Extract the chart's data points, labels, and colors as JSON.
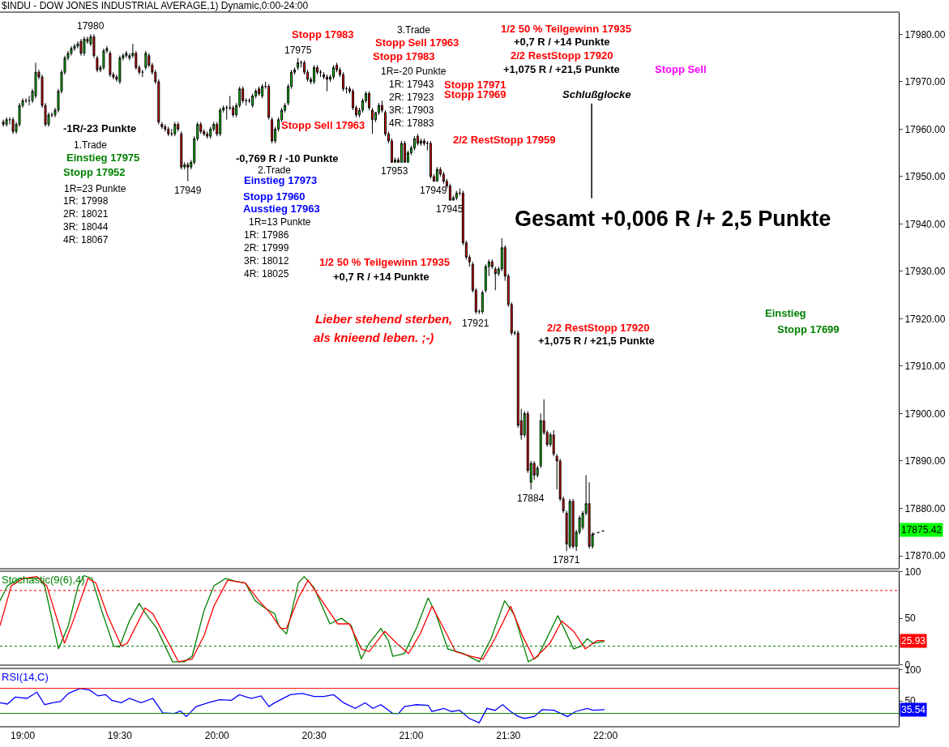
{
  "chart_data": [
    {
      "type": "candlestick",
      "title": "$INDU - DOW JONES INDUSTRIAL AVERAGE,1) Dynamic,0:00-24:00",
      "x": [
        18.9,
        18.9167,
        18.9333,
        18.95,
        18.9667,
        18.9833,
        19.0,
        19.0167,
        19.0333,
        19.05,
        19.0667,
        19.0833,
        19.1,
        19.1167,
        19.1333,
        19.15,
        19.1667,
        19.1833,
        19.2,
        19.2167,
        19.2333,
        19.25,
        19.2667,
        19.2833,
        19.3,
        19.3167,
        19.3333,
        19.35,
        19.3667,
        19.3833,
        19.4,
        19.4167,
        19.4333,
        19.45,
        19.4667,
        19.4833,
        19.5,
        19.5167,
        19.5333,
        19.55,
        19.5667,
        19.5833,
        19.6,
        19.6167,
        19.6333,
        19.65,
        19.6667,
        19.6833,
        19.7,
        19.7167,
        19.7333,
        19.75,
        19.7667,
        19.7833,
        19.8,
        19.8167,
        19.8333,
        19.85,
        19.8667,
        19.8833,
        19.9,
        19.9167,
        19.9333,
        19.95,
        19.9667,
        19.9833,
        20.0,
        20.0167,
        20.0333,
        20.05,
        20.0667,
        20.0833,
        20.1,
        20.1167,
        20.1333,
        20.15,
        20.1667,
        20.1833,
        20.2,
        20.2167,
        20.2333,
        20.25,
        20.2667,
        20.2833,
        20.3,
        20.3167,
        20.3333,
        20.35,
        20.3667,
        20.3833,
        20.4,
        20.4167,
        20.4333,
        20.45,
        20.4667,
        20.4833,
        20.5,
        20.5167,
        20.5333,
        20.55,
        20.5667,
        20.5833,
        20.6,
        20.6167,
        20.6333,
        20.65,
        20.6667,
        20.6833,
        20.7,
        20.7167,
        20.7333,
        20.75,
        20.7667,
        20.7833,
        20.8,
        20.8167,
        20.8333,
        20.85,
        20.8667,
        20.8833,
        20.9,
        20.9167,
        20.9333,
        20.95,
        20.9667,
        20.9833,
        21.0,
        21.0167,
        21.0333,
        21.05,
        21.0667,
        21.0833,
        21.1,
        21.1167,
        21.1333,
        21.15,
        21.1667,
        21.1833,
        21.2,
        21.2167,
        21.2333,
        21.25,
        21.2667,
        21.2833,
        21.3,
        21.3167,
        21.3333,
        21.35,
        21.3667,
        21.3833,
        21.4,
        21.4167,
        21.4333,
        21.45,
        21.4667,
        21.4833,
        21.5,
        21.5167,
        21.5333,
        21.55,
        21.5667,
        21.5833,
        21.6,
        21.6167,
        21.6333,
        21.65,
        21.6667,
        21.6833,
        21.7,
        21.7167,
        21.7333,
        21.75,
        21.7667,
        21.7833,
        21.8,
        21.8167,
        21.8333,
        21.85,
        21.8667,
        21.8833,
        21.9,
        21.9167,
        21.9333
      ],
      "ohlc": [
        [
          17961.5,
          17962,
          17960.5,
          17961
        ],
        [
          17961,
          17962.5,
          17960.5,
          17962
        ],
        [
          17962,
          17962.5,
          17961,
          17962
        ],
        [
          17962,
          17962.5,
          17959,
          17959.5
        ],
        [
          17959.5,
          17961.5,
          17959,
          17961
        ],
        [
          17961,
          17965.5,
          17960.5,
          17965
        ],
        [
          17965,
          17966.5,
          17964.5,
          17966
        ],
        [
          17966,
          17966.5,
          17965.5,
          17966
        ],
        [
          17966,
          17967,
          17965,
          17966
        ],
        [
          17966,
          17968.5,
          17965.5,
          17968
        ],
        [
          17967,
          17974,
          17966.5,
          17972
        ],
        [
          17972,
          17972.5,
          17970.5,
          17971
        ],
        [
          17971,
          17971.5,
          17964.5,
          17965
        ],
        [
          17965,
          17965.5,
          17960.5,
          17961
        ],
        [
          17961,
          17963.5,
          17960.5,
          17963
        ],
        [
          17963,
          17963.5,
          17962.5,
          17963
        ],
        [
          17963,
          17964.5,
          17962.5,
          17964
        ],
        [
          17964,
          17968.5,
          17963.5,
          17968
        ],
        [
          17968,
          17972.5,
          17967.5,
          17972
        ],
        [
          17972,
          17975.5,
          17971.5,
          17975
        ],
        [
          17975,
          17976.5,
          17974.5,
          17976
        ],
        [
          17976,
          17977.5,
          17975.5,
          17977
        ],
        [
          17977,
          17978,
          17976.5,
          17977.5
        ],
        [
          17977.5,
          17978.5,
          17977,
          17978
        ],
        [
          17978.5,
          17979,
          17975.5,
          17976
        ],
        [
          17976,
          17979.5,
          17975.5,
          17979
        ],
        [
          17979,
          17979.5,
          17978,
          17978.5
        ],
        [
          17978,
          17980,
          17977.5,
          17979.5
        ],
        [
          17979.5,
          17980,
          17975,
          17975.5
        ],
        [
          17975,
          17975.5,
          17972,
          17972.5
        ],
        [
          17972.5,
          17973.5,
          17972,
          17973
        ],
        [
          17973,
          17977,
          17972.5,
          17976.5
        ],
        [
          17976.5,
          17977.5,
          17976,
          17977
        ],
        [
          17976,
          17976.5,
          17971,
          17971.5
        ],
        [
          17971.5,
          17972,
          17970.5,
          17971
        ],
        [
          17971,
          17971.5,
          17970,
          17970.5
        ],
        [
          17970,
          17975.5,
          17969.5,
          17975
        ],
        [
          17975,
          17976,
          17974.5,
          17975.5
        ],
        [
          17975.5,
          17976.5,
          17975,
          17976
        ],
        [
          17975,
          17976,
          17974.5,
          17975.5
        ],
        [
          17975.5,
          17978,
          17975,
          17976
        ],
        [
          17976,
          17976.5,
          17972.5,
          17973
        ],
        [
          17973,
          17973.5,
          17971.5,
          17972
        ],
        [
          17972,
          17972.5,
          17971,
          17972
        ],
        [
          17973,
          17976.5,
          17972.5,
          17976
        ],
        [
          17975.5,
          17976,
          17973,
          17973.5
        ],
        [
          17973.5,
          17974,
          17971.5,
          17972
        ],
        [
          17972,
          17972.5,
          17969.5,
          17970
        ],
        [
          17970,
          17970.5,
          17961,
          17961.5
        ],
        [
          17961,
          17961.5,
          17960,
          17960.5
        ],
        [
          17960.5,
          17961,
          17959.5,
          17960
        ],
        [
          17960,
          17960.5,
          17958.5,
          17959
        ],
        [
          17959,
          17960,
          17958.5,
          17959
        ],
        [
          17959,
          17961.5,
          17958.5,
          17961
        ],
        [
          17961,
          17961.5,
          17959.5,
          17960
        ],
        [
          17959,
          17959.5,
          17951.5,
          17952
        ],
        [
          17952,
          17953,
          17951.5,
          17952.5
        ],
        [
          17952.5,
          17953,
          17949,
          17952
        ],
        [
          17952,
          17953.5,
          17951.5,
          17953
        ],
        [
          17953,
          17958.5,
          17952.5,
          17958
        ],
        [
          17958,
          17961.5,
          17957.5,
          17961
        ],
        [
          17961,
          17961.5,
          17959,
          17959.5
        ],
        [
          17959.5,
          17960,
          17958.5,
          17959
        ],
        [
          17959,
          17959.5,
          17958,
          17958.5
        ],
        [
          17958.5,
          17960.5,
          17958,
          17960
        ],
        [
          17960,
          17961.5,
          17959.5,
          17961
        ],
        [
          17961,
          17961.5,
          17958.5,
          17959
        ],
        [
          17959,
          17964.5,
          17958.5,
          17964
        ],
        [
          17964,
          17965,
          17963.5,
          17964.5
        ],
        [
          17964.5,
          17965,
          17962,
          17964.5
        ],
        [
          17964.5,
          17967,
          17964,
          17964.5
        ],
        [
          17964.5,
          17965,
          17962.5,
          17963
        ],
        [
          17963,
          17965.5,
          17962.5,
          17965
        ],
        [
          17965,
          17969,
          17964.5,
          17968.5
        ],
        [
          17968.5,
          17969,
          17965.5,
          17966
        ],
        [
          17966,
          17966.5,
          17965,
          17966
        ],
        [
          17966,
          17966.5,
          17965.5,
          17966
        ],
        [
          17965,
          17967.5,
          17964.5,
          17967
        ],
        [
          17967,
          17968.5,
          17966.5,
          17968
        ],
        [
          17968.5,
          17969,
          17967,
          17967.5
        ],
        [
          17967,
          17969.5,
          17966.5,
          17969
        ],
        [
          17969,
          17970,
          17968.5,
          17969
        ],
        [
          17969,
          17969.5,
          17962,
          17962.5
        ],
        [
          17962,
          17962.5,
          17957,
          17957.5
        ],
        [
          17957.5,
          17960.5,
          17957,
          17960
        ],
        [
          17960,
          17962.5,
          17959.5,
          17962
        ],
        [
          17962,
          17964.5,
          17961.5,
          17964
        ],
        [
          17964,
          17965.5,
          17963.5,
          17965
        ],
        [
          17965.5,
          17969.5,
          17965,
          17969
        ],
        [
          17969,
          17972.5,
          17968.5,
          17972
        ],
        [
          17972,
          17973,
          17971.5,
          17972.5
        ],
        [
          17973,
          17975,
          17972.5,
          17974
        ],
        [
          17974,
          17974.5,
          17973,
          17974
        ],
        [
          17974,
          17974.5,
          17971.5,
          17972
        ],
        [
          17972,
          17972.5,
          17970,
          17970.5
        ],
        [
          17970.5,
          17971,
          17969.5,
          17970
        ],
        [
          17970,
          17973.5,
          17969.5,
          17973
        ],
        [
          17973,
          17973.5,
          17971.5,
          17972
        ],
        [
          17972,
          17972.5,
          17971,
          17972
        ],
        [
          17971.5,
          17972,
          17970.5,
          17971
        ],
        [
          17971,
          17971.5,
          17968,
          17970.5
        ],
        [
          17970.5,
          17971.5,
          17970,
          17971
        ],
        [
          17971,
          17973.5,
          17970.5,
          17973
        ],
        [
          17973.5,
          17974,
          17972,
          17972.5
        ],
        [
          17972.5,
          17973,
          17971,
          17971.5
        ],
        [
          17971.5,
          17972,
          17968,
          17968.5
        ],
        [
          17968.5,
          17969,
          17967.5,
          17968.5
        ],
        [
          17968.5,
          17969,
          17967.5,
          17968
        ],
        [
          17968,
          17968.5,
          17964,
          17964.5
        ],
        [
          17964.5,
          17965,
          17962.5,
          17963
        ],
        [
          17963,
          17964.5,
          17962.5,
          17964
        ],
        [
          17964,
          17966.5,
          17963.5,
          17966
        ],
        [
          17966,
          17968,
          17965.5,
          17967.5
        ],
        [
          17967.5,
          17968,
          17964,
          17964.5
        ],
        [
          17964,
          17964.5,
          17959,
          17962
        ],
        [
          17962,
          17963.5,
          17961.5,
          17963.5
        ],
        [
          17963.5,
          17965.5,
          17963,
          17965
        ],
        [
          17965,
          17966,
          17963.5,
          17964
        ],
        [
          17963.5,
          17964,
          17958.5,
          17959
        ],
        [
          17959,
          17959.5,
          17957,
          17957.5
        ],
        [
          17957.5,
          17958,
          17953,
          17953
        ],
        [
          17953,
          17954,
          17953,
          17953.5
        ],
        [
          17953.5,
          17954,
          17953,
          17953
        ],
        [
          17953,
          17957.5,
          17953,
          17957
        ],
        [
          17957,
          17957.5,
          17953,
          17953
        ],
        [
          17953,
          17955.5,
          17953,
          17955
        ],
        [
          17955,
          17956.5,
          17954.5,
          17956
        ],
        [
          17956,
          17958.5,
          17955.5,
          17958
        ],
        [
          17958.5,
          17959,
          17956.5,
          17957
        ],
        [
          17957,
          17958,
          17956.5,
          17957.5
        ],
        [
          17957.5,
          17958,
          17956.5,
          17957
        ],
        [
          17957,
          17957.5,
          17955.5,
          17957
        ],
        [
          17957,
          17957.5,
          17949.5,
          17950
        ],
        [
          17950,
          17950.5,
          17949,
          17949
        ],
        [
          17949,
          17952,
          17949,
          17951.5
        ],
        [
          17951.5,
          17952,
          17950,
          17950.5
        ],
        [
          17950.5,
          17951,
          17948.5,
          17949
        ],
        [
          17949,
          17949.5,
          17947.5,
          17948
        ],
        [
          17948,
          17948.5,
          17945,
          17945
        ],
        [
          17945,
          17946,
          17945,
          17945.5
        ],
        [
          17945.5,
          17947,
          17945,
          17946.5
        ],
        [
          17946.5,
          17947.5,
          17946,
          17946.5
        ],
        [
          17946.5,
          17947,
          17935.5,
          17936
        ],
        [
          17936,
          17936.5,
          17932.5,
          17933
        ],
        [
          17933,
          17933.5,
          17931,
          17932
        ],
        [
          17931.5,
          17932,
          17925.5,
          17926
        ],
        [
          17926,
          17926.5,
          17921,
          17921.5
        ],
        [
          17921.5,
          17922,
          17921,
          17921.5
        ],
        [
          17921.5,
          17926,
          17921,
          17925.5
        ],
        [
          17926,
          17931.5,
          17925.5,
          17931
        ],
        [
          17931,
          17932.5,
          17929,
          17932
        ],
        [
          17932,
          17932.5,
          17930.5,
          17931
        ],
        [
          17930.5,
          17931,
          17926,
          17929.5
        ],
        [
          17929.5,
          17931,
          17929,
          17930.5
        ],
        [
          17930.5,
          17937,
          17930,
          17935
        ],
        [
          17935,
          17935.5,
          17928,
          17929
        ],
        [
          17929,
          17929.5,
          17922.5,
          17923
        ],
        [
          17923,
          17923.5,
          17916.5,
          17917
        ],
        [
          17917,
          17917.5,
          17916.5,
          17917
        ],
        [
          17917,
          17917.5,
          17897,
          17897.5
        ],
        [
          17898.5,
          17901,
          17894.5,
          17895.5
        ],
        [
          17895.5,
          17900.5,
          17895,
          17900
        ],
        [
          17900,
          17900.5,
          17887.5,
          17888
        ],
        [
          17885.5,
          17890,
          17884,
          17889.5
        ],
        [
          17889.5,
          17890,
          17886,
          17887
        ],
        [
          17887,
          17889,
          17886.5,
          17888.5
        ],
        [
          17889,
          17900,
          17888.5,
          17898.5
        ],
        [
          17898.5,
          17903,
          17895.5,
          17896
        ],
        [
          17896,
          17896.5,
          17893,
          17893.5
        ],
        [
          17893.5,
          17896,
          17893,
          17895.5
        ],
        [
          17895.5,
          17896.5,
          17891,
          17891.5
        ],
        [
          17891,
          17891.5,
          17884,
          17890
        ],
        [
          17890,
          17890.5,
          17881.5,
          17882
        ],
        [
          17882,
          17882.5,
          17879,
          17879.5
        ],
        [
          17879,
          17879.5,
          17871,
          17872.5
        ],
        [
          17872,
          17882,
          17871.5,
          17881.5
        ],
        [
          17881.5,
          17882,
          17871.5,
          17872
        ],
        [
          17872,
          17875.5,
          17871,
          17875
        ],
        [
          17875,
          17878.5,
          17874.5,
          17878
        ],
        [
          17876,
          17879.5,
          17875.5,
          17879
        ],
        [
          17879,
          17887,
          17878.5,
          17881
        ],
        [
          17881,
          17885.5,
          17871.5,
          17872
        ],
        [
          17872,
          17875,
          17871.5,
          17874.5
        ]
      ],
      "series": [
        {
          "type": "line",
          "x": [
            21.9333,
            22.0
          ],
          "values": [
            17874.5,
            17875.4
          ],
          "color": "#000000",
          "line_style": "dotted"
        }
      ],
      "xlim": [
        18.883,
        23.51
      ],
      "ylim": [
        17867.5,
        17984.5
      ],
      "yticks": [
        {
          "value": 17870,
          "label": "17870.00"
        },
        {
          "value": 17880,
          "label": "17880.00"
        },
        {
          "value": 17890,
          "label": "17890.00"
        },
        {
          "value": 17900,
          "label": "17900.00"
        },
        {
          "value": 17910,
          "label": "17910.00"
        },
        {
          "value": 17920,
          "label": "17920.00"
        },
        {
          "value": 17930,
          "label": "17930.00"
        },
        {
          "value": 17940,
          "label": "17940.00"
        },
        {
          "value": 17950,
          "label": "17950.00"
        },
        {
          "value": 17960,
          "label": "17960.00"
        },
        {
          "value": 17970,
          "label": "17970.00"
        },
        {
          "value": 17980,
          "label": "17980.00"
        }
      ],
      "tick_labels": "y",
      "annotations": [
        {
          "text": "17980",
          "x": 19.35,
          "y": 17980
        },
        "-1R/-23 Punkte",
        "1.Trade",
        "Einstieg 17975",
        "Stopp 17952",
        "1R=23 Punkte",
        "1R: 17998",
        "2R: 18021",
        "3R: 18044",
        "4R: 18067",
        {
          "text": "17949",
          "x": 19.85,
          "y": 17949
        },
        {
          "text": "17975",
          "x": 20.4167,
          "y": 17975
        },
        "Stopp 17983",
        "-0,769 R / -10 Punkte",
        "2.Trade",
        "Einstieg 17973",
        "Stopp 17960",
        "Ausstieg 17963",
        "1R=13 Punkte",
        "1R: 17986",
        "2R: 17999",
        "3R: 18012",
        "4R: 18025",
        "Stopp Sell 17963",
        "1/2 50 % Teilgewinn 17935",
        "+0,7 R / +14 Punkte",
        "Lieber stehend sterben,",
        "als knieend leben. ;-)",
        "3.Trade",
        "Stopp Sell 17963",
        "Stopp 17983",
        "1R=-20 Punkte",
        "1R: 17943",
        "2R: 17923",
        "3R: 17903",
        "4R: 17883",
        "Stopp 17971",
        "Stopp 17969",
        {
          "text": "17953",
          "x": 20.9167,
          "y": 17953
        },
        {
          "text": "17949",
          "x": 21.1167,
          "y": 17949
        },
        {
          "text": "17945",
          "x": 21.2,
          "y": 17945
        },
        "2/2 RestStopp 17959",
        "1/2 50 % Teilgewinn 17935",
        "+0,7 R / +14 Punkte",
        "2/2 RestStopp 17920",
        "+1,075 R / +21,5 Punkte",
        "Stopp Sell",
        "Schlußglocke",
        "Gesamt +0,006 R /+ 2,5 Punkte",
        {
          "text": "17921",
          "x": 21.3333,
          "y": 17921
        },
        "2/2 RestStopp 17920",
        "+1,075 R / +21,5 Punkte",
        "Einstieg",
        "Stopp 17699",
        {
          "text": "17884",
          "x": 21.6167,
          "y": 17884
        },
        {
          "text": "17871",
          "x": 21.8,
          "y": 17871
        },
        "17875.42"
      ]
    },
    {
      "type": "line",
      "title": "Stochastic(9(6),4)",
      "xlim": [
        18.883,
        23.51
      ],
      "ylim": [
        0,
        100
      ],
      "yticks": [
        0,
        50,
        100
      ],
      "tick_labels": "y",
      "series": [
        {
          "color": "#008000",
          "x": [
            18.883,
            18.921,
            18.982,
            19.083,
            19.113,
            19.184,
            19.235,
            19.285,
            19.316,
            19.356,
            19.407,
            19.468,
            19.498,
            19.549,
            19.599,
            19.64,
            19.69,
            19.771,
            19.832,
            19.872,
            19.933,
            19.984,
            20.044,
            20.095,
            20.146,
            20.196,
            20.247,
            20.297,
            20.318,
            20.358,
            20.419,
            20.449,
            20.5,
            20.581,
            20.641,
            20.692,
            20.743,
            20.783,
            20.844,
            20.884,
            20.905,
            20.965,
            21.026,
            21.087,
            21.127,
            21.188,
            21.269,
            21.35,
            21.411,
            21.481,
            21.532,
            21.603,
            21.653,
            21.755,
            21.836,
            21.876,
            21.906,
            21.937,
            21.995
          ],
          "values": [
            69,
            85,
            93,
            93,
            85,
            17,
            42,
            85,
            96,
            93,
            58,
            20,
            19,
            47,
            66,
            53,
            39,
            3,
            3,
            9,
            58,
            85,
            93,
            90,
            88,
            69,
            61,
            55,
            42,
            33,
            88,
            95,
            83,
            44,
            50,
            42,
            6,
            23,
            39,
            25,
            9,
            12,
            39,
            72,
            55,
            17,
            12,
            3,
            28,
            69,
            53,
            3,
            9,
            53,
            17,
            20,
            28,
            23,
            25
          ]
        },
        {
          "color": "#ff0000",
          "x": [
            18.883,
            18.941,
            19.002,
            19.073,
            19.124,
            19.215,
            19.265,
            19.336,
            19.377,
            19.437,
            19.508,
            19.538,
            19.63,
            19.67,
            19.731,
            19.802,
            19.872,
            19.933,
            19.984,
            20.055,
            20.146,
            20.216,
            20.277,
            20.328,
            20.358,
            20.419,
            20.469,
            20.54,
            20.621,
            20.682,
            20.743,
            20.783,
            20.864,
            20.925,
            20.986,
            21.046,
            21.107,
            21.168,
            21.228,
            21.309,
            21.37,
            21.431,
            21.512,
            21.573,
            21.633,
            21.714,
            21.775,
            21.836,
            21.896,
            21.957,
            21.995
          ],
          "values": [
            42,
            85,
            93,
            95,
            85,
            23,
            50,
            93,
            88,
            53,
            20,
            23,
            61,
            55,
            31,
            3,
            6,
            31,
            63,
            91,
            88,
            69,
            55,
            39,
            39,
            72,
            91,
            69,
            44,
            44,
            17,
            14,
            36,
            23,
            12,
            33,
            63,
            39,
            14,
            9,
            6,
            28,
            63,
            31,
            6,
            23,
            47,
            36,
            17,
            26,
            26
          ]
        }
      ],
      "ref_lines": [
        {
          "axis": "y",
          "value": 80,
          "color": "#ff0000",
          "line_style": "dotted"
        },
        {
          "axis": "y",
          "value": 20,
          "color": "#008000",
          "line_style": "dotted"
        }
      ],
      "annotations": [
        "25.93"
      ]
    },
    {
      "type": "line",
      "title": "RSI(14,C)",
      "xlim": [
        18.883,
        23.51
      ],
      "ylim": [
        10,
        100
      ],
      "yticks": [
        50,
        100
      ],
      "xticks": [
        {
          "value": 19,
          "label": "19:00"
        },
        {
          "value": 19.5,
          "label": "19:30"
        },
        {
          "value": 20,
          "label": "20:00"
        },
        {
          "value": 20.5,
          "label": "20:30"
        },
        {
          "value": 21,
          "label": "21:00"
        },
        {
          "value": 21.5,
          "label": "21:30"
        },
        {
          "value": 22,
          "label": "22:00"
        }
      ],
      "series": [
        {
          "color": "#0000ff",
          "x": [
            18.883,
            18.921,
            18.962,
            19.022,
            19.073,
            19.113,
            19.154,
            19.194,
            19.235,
            19.296,
            19.346,
            19.387,
            19.427,
            19.458,
            19.508,
            19.549,
            19.609,
            19.67,
            19.721,
            19.781,
            19.812,
            19.842,
            19.893,
            19.953,
            20.014,
            20.075,
            20.115,
            20.176,
            20.227,
            20.267,
            20.297,
            20.378,
            20.439,
            20.5,
            20.55,
            20.601,
            20.652,
            20.712,
            20.763,
            20.803,
            20.844,
            20.905,
            20.935,
            20.965,
            21.026,
            21.087,
            21.107,
            21.168,
            21.208,
            21.249,
            21.299,
            21.35,
            21.39,
            21.431,
            21.471,
            21.512,
            21.552,
            21.583,
            21.633,
            21.674,
            21.734,
            21.805,
            21.846,
            21.906,
            21.937,
            21.995
          ],
          "values": [
            47,
            45,
            56,
            54,
            64,
            44,
            47,
            49,
            62,
            70,
            67,
            58,
            60,
            51,
            47,
            54,
            47,
            54,
            31,
            30,
            34,
            25,
            41,
            47,
            52,
            51,
            60,
            54,
            58,
            41,
            47,
            60,
            62,
            57,
            57,
            60,
            47,
            38,
            47,
            38,
            44,
            30,
            30,
            41,
            44,
            43,
            33,
            38,
            33,
            35,
            22,
            15,
            38,
            35,
            44,
            33,
            25,
            22,
            25,
            36,
            35,
            25,
            33,
            38,
            35,
            36
          ]
        }
      ],
      "ref_lines": [
        {
          "axis": "y",
          "value": 70,
          "color": "#ff0000",
          "line_style": "solid"
        },
        {
          "axis": "y",
          "value": 30,
          "color": "#008000",
          "line_style": "solid"
        }
      ],
      "annotations": [
        "35.54"
      ]
    }
  ]
}
